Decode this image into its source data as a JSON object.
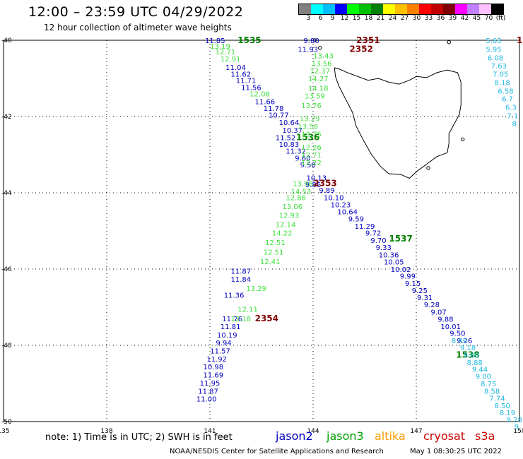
{
  "header": {
    "title": "12:00 – 23:59 UTC 04/29/2022",
    "subtitle": "12 hour collection of altimeter wave heights"
  },
  "legend": {
    "colors": [
      "#808080",
      "#00ffff",
      "#00bfff",
      "#0000ff",
      "#00ff00",
      "#00c000",
      "#008000",
      "#ffff00",
      "#ffc000",
      "#ff8000",
      "#ff0000",
      "#c00000",
      "#800000",
      "#ff00ff",
      "#c080ff",
      "#ffc0ff",
      "#000000"
    ],
    "labels": [
      "3",
      "6",
      "9",
      "12",
      "15",
      "18",
      "21",
      "24",
      "27",
      "30",
      "33",
      "36",
      "39",
      "42",
      "45",
      "70",
      "(ft)"
    ]
  },
  "axes": {
    "lon_ticks": [
      "135",
      "138",
      "141",
      "144",
      "147",
      "150"
    ],
    "lat_ticks": [
      "-40",
      "-42",
      "-44",
      "-46",
      "-48",
      "-50"
    ]
  },
  "map_data": {
    "lon_range": [
      135,
      150
    ],
    "lat_range": [
      -50,
      -40
    ],
    "tracks": [
      {
        "mission": "jason2",
        "color": "#0000c0",
        "pass_labels": [
          {
            "text": "1535",
            "lon": 142.15,
            "lat": -40.0,
            "color": "#008000"
          },
          {
            "text": "1536",
            "lon": 143.85,
            "lat": -42.55,
            "color": "#008000"
          },
          {
            "text": "1537",
            "lon": 146.55,
            "lat": -45.2,
            "color": "#008000"
          },
          {
            "text": "1538",
            "lon": 148.5,
            "lat": -48.25,
            "color": "#008000"
          }
        ],
        "points": [
          {
            "lon": 141.15,
            "lat": -40.0,
            "v": "11.85"
          },
          {
            "lon": 141.75,
            "lat": -40.7,
            "v": "11.04"
          },
          {
            "lon": 141.9,
            "lat": -40.88,
            "v": "11.62"
          },
          {
            "lon": 142.05,
            "lat": -41.05,
            "v": "11.71"
          },
          {
            "lon": 142.2,
            "lat": -41.23,
            "v": "11.56"
          },
          {
            "lon": 142.6,
            "lat": -41.6,
            "v": "11.66"
          },
          {
            "lon": 142.85,
            "lat": -41.78,
            "v": "11.78"
          },
          {
            "lon": 143.0,
            "lat": -41.95,
            "v": "10.77"
          },
          {
            "lon": 143.3,
            "lat": -42.15,
            "v": "10.64"
          },
          {
            "lon": 143.4,
            "lat": -42.35,
            "v": "10.37"
          },
          {
            "lon": 143.2,
            "lat": -42.55,
            "v": "11.52"
          },
          {
            "lon": 143.3,
            "lat": -42.72,
            "v": "10.83"
          },
          {
            "lon": 143.5,
            "lat": -42.9,
            "v": "11.32"
          },
          {
            "lon": 143.7,
            "lat": -43.08,
            "v": "9.60"
          },
          {
            "lon": 143.85,
            "lat": -43.26,
            "v": "9.50"
          },
          {
            "lon": 144.1,
            "lat": -43.6,
            "v": "10.13"
          },
          {
            "lon": 144.0,
            "lat": -43.78,
            "v": "9.86"
          },
          {
            "lon": 144.4,
            "lat": -43.93,
            "v": "9.89"
          },
          {
            "lon": 144.6,
            "lat": -44.12,
            "v": "10.10"
          },
          {
            "lon": 144.8,
            "lat": -44.31,
            "v": "10.23"
          },
          {
            "lon": 145.0,
            "lat": -44.49,
            "v": "10.64"
          },
          {
            "lon": 145.25,
            "lat": -44.68,
            "v": "9.59"
          },
          {
            "lon": 145.5,
            "lat": -44.87,
            "v": "11.29"
          },
          {
            "lon": 145.75,
            "lat": -45.05,
            "v": "9.72"
          },
          {
            "lon": 145.9,
            "lat": -45.24,
            "v": "9.70"
          },
          {
            "lon": 146.05,
            "lat": -45.43,
            "v": "9.33"
          },
          {
            "lon": 146.2,
            "lat": -45.62,
            "v": "10.36"
          },
          {
            "lon": 146.35,
            "lat": -45.81,
            "v": "10.05"
          },
          {
            "lon": 146.55,
            "lat": -46.0,
            "v": "10.02"
          },
          {
            "lon": 146.75,
            "lat": -46.18,
            "v": "9.99"
          },
          {
            "lon": 146.9,
            "lat": -46.37,
            "v": "9.15"
          },
          {
            "lon": 147.1,
            "lat": -46.56,
            "v": "9.25"
          },
          {
            "lon": 147.25,
            "lat": -46.74,
            "v": "9.31"
          },
          {
            "lon": 147.45,
            "lat": -46.93,
            "v": "9.28"
          },
          {
            "lon": 147.65,
            "lat": -47.12,
            "v": "9.07"
          },
          {
            "lon": 147.85,
            "lat": -47.31,
            "v": "9.88"
          },
          {
            "lon": 148.0,
            "lat": -47.5,
            "v": "10.01"
          },
          {
            "lon": 148.2,
            "lat": -47.68,
            "v": "9.50"
          },
          {
            "lon": 148.4,
            "lat": -47.87,
            "v": "9.26"
          },
          {
            "lon": 143.95,
            "lat": -40.0,
            "v": "9.80"
          },
          {
            "lon": 143.85,
            "lat": -40.23,
            "v": "11.93"
          },
          {
            "lon": 141.9,
            "lat": -46.05,
            "v": "11.87"
          },
          {
            "lon": 141.9,
            "lat": -46.26,
            "v": "11.84"
          },
          {
            "lon": 141.7,
            "lat": -46.68,
            "v": "11.36"
          },
          {
            "lon": 141.65,
            "lat": -47.3,
            "v": "11.76"
          },
          {
            "lon": 141.6,
            "lat": -47.5,
            "v": "11.81"
          },
          {
            "lon": 141.5,
            "lat": -47.72,
            "v": "10.19"
          },
          {
            "lon": 141.4,
            "lat": -47.93,
            "v": "9.94"
          },
          {
            "lon": 141.3,
            "lat": -48.14,
            "v": "11.57"
          },
          {
            "lon": 141.2,
            "lat": -48.35,
            "v": "11.92"
          },
          {
            "lon": 141.1,
            "lat": -48.56,
            "v": "10.98"
          },
          {
            "lon": 141.1,
            "lat": -48.77,
            "v": "11.69"
          },
          {
            "lon": 141.0,
            "lat": -48.98,
            "v": "11.95"
          },
          {
            "lon": 140.95,
            "lat": -49.19,
            "v": "11.87"
          },
          {
            "lon": 140.9,
            "lat": -49.4,
            "v": "11.00"
          }
        ]
      },
      {
        "mission": "jason3",
        "color": "#40e040",
        "points": [
          {
            "lon": 141.3,
            "lat": -40.15,
            "v": "13.19"
          },
          {
            "lon": 141.45,
            "lat": -40.3,
            "v": "12.71"
          },
          {
            "lon": 141.6,
            "lat": -40.48,
            "v": "12.91"
          },
          {
            "lon": 142.45,
            "lat": -41.4,
            "v": "12.08"
          },
          {
            "lon": 144.3,
            "lat": -40.4,
            "v": "13.43"
          },
          {
            "lon": 144.25,
            "lat": -40.6,
            "v": "13.56"
          },
          {
            "lon": 144.2,
            "lat": -40.8,
            "v": "12.37"
          },
          {
            "lon": 144.15,
            "lat": -41.0,
            "v": "14.27"
          },
          {
            "lon": 144.15,
            "lat": -41.25,
            "v": "14.18"
          },
          {
            "lon": 144.05,
            "lat": -41.45,
            "v": "13.59"
          },
          {
            "lon": 143.95,
            "lat": -41.7,
            "v": "13.76"
          },
          {
            "lon": 143.9,
            "lat": -42.05,
            "v": "13.29"
          },
          {
            "lon": 143.85,
            "lat": -42.25,
            "v": "13.58"
          },
          {
            "lon": 143.95,
            "lat": -42.45,
            "v": "13.75"
          },
          {
            "lon": 143.95,
            "lat": -42.8,
            "v": "12.26"
          },
          {
            "lon": 143.95,
            "lat": -43.0,
            "v": "12.71"
          },
          {
            "lon": 143.95,
            "lat": -43.2,
            "v": "12.22"
          },
          {
            "lon": 143.7,
            "lat": -43.75,
            "v": "13.98"
          },
          {
            "lon": 143.65,
            "lat": -43.95,
            "v": "14.53"
          },
          {
            "lon": 143.5,
            "lat": -44.12,
            "v": "12.86"
          },
          {
            "lon": 143.4,
            "lat": -44.35,
            "v": "13.06"
          },
          {
            "lon": 143.3,
            "lat": -44.58,
            "v": "12.93"
          },
          {
            "lon": 143.2,
            "lat": -44.82,
            "v": "12.14"
          },
          {
            "lon": 143.1,
            "lat": -45.05,
            "v": "14.22"
          },
          {
            "lon": 142.9,
            "lat": -45.3,
            "v": "12.51"
          },
          {
            "lon": 142.85,
            "lat": -45.55,
            "v": "12.51"
          },
          {
            "lon": 142.75,
            "lat": -45.8,
            "v": "12.41"
          },
          {
            "lon": 142.35,
            "lat": -46.5,
            "v": "13.29"
          },
          {
            "lon": 142.1,
            "lat": -47.05,
            "v": "12.11"
          },
          {
            "lon": 141.9,
            "lat": -47.3,
            "v": "12.18"
          }
        ]
      },
      {
        "mission": "cryosat",
        "color": "#800000",
        "pass_labels": [
          {
            "text": "2351",
            "lon": 145.6,
            "lat": -40.0,
            "color": "#800000"
          },
          {
            "text": "2352",
            "lon": 145.4,
            "lat": -40.23,
            "color": "#800000"
          },
          {
            "text": "2353",
            "lon": 144.35,
            "lat": -43.75,
            "color": "#800000"
          },
          {
            "text": "2354",
            "lon": 142.65,
            "lat": -47.3,
            "color": "#800000"
          }
        ]
      },
      {
        "mission": "s3a-right",
        "color": "#20b8e0",
        "points": [
          {
            "lon": 149.25,
            "lat": -40.0,
            "v": "5.63"
          },
          {
            "lon": 149.25,
            "lat": -40.23,
            "v": "5.95"
          },
          {
            "lon": 149.3,
            "lat": -40.45,
            "v": "6.08"
          },
          {
            "lon": 149.4,
            "lat": -40.67,
            "v": "7.63"
          },
          {
            "lon": 149.45,
            "lat": -40.88,
            "v": "7.05"
          },
          {
            "lon": 149.5,
            "lat": -41.1,
            "v": "8.18"
          },
          {
            "lon": 149.6,
            "lat": -41.32,
            "v": "6.58"
          },
          {
            "lon": 149.65,
            "lat": -41.53,
            "v": "6.7"
          },
          {
            "lon": 149.75,
            "lat": -41.75,
            "v": "6.3"
          },
          {
            "lon": 149.8,
            "lat": -41.97,
            "v": "7.1"
          },
          {
            "lon": 149.85,
            "lat": -42.18,
            "v": "8"
          },
          {
            "lon": 148.25,
            "lat": -47.87,
            "v": "8.49"
          },
          {
            "lon": 148.5,
            "lat": -48.06,
            "v": "9.18"
          },
          {
            "lon": 148.6,
            "lat": -48.25,
            "v": "8.80"
          },
          {
            "lon": 148.7,
            "lat": -48.44,
            "v": "8.88"
          },
          {
            "lon": 148.85,
            "lat": -48.62,
            "v": "9.44"
          },
          {
            "lon": 148.95,
            "lat": -48.81,
            "v": "9.00"
          },
          {
            "lon": 149.1,
            "lat": -49.0,
            "v": "8.75"
          },
          {
            "lon": 149.2,
            "lat": -49.19,
            "v": "8.58"
          },
          {
            "lon": 149.35,
            "lat": -49.38,
            "v": "7.74"
          },
          {
            "lon": 149.5,
            "lat": -49.57,
            "v": "8.50"
          },
          {
            "lon": 149.65,
            "lat": -49.76,
            "v": "8.19"
          },
          {
            "lon": 149.85,
            "lat": -49.94,
            "v": "9.28"
          },
          {
            "lon": 149.95,
            "lat": -50.12,
            "v": "9."
          }
        ]
      }
    ]
  },
  "edge_label": "1",
  "note": "note:  1) Time is in UTC;  2) SWH is in feet",
  "missions": [
    {
      "label": "jason2",
      "color": "#0000c0",
      "x": 390
    },
    {
      "label": "jason3",
      "color": "#00a000",
      "x": 462
    },
    {
      "label": "altika",
      "color": "#ff9900",
      "x": 530
    },
    {
      "label": "cryosat",
      "color": "#cc0000",
      "x": 599
    },
    {
      "label": "s3a",
      "color": "#cc0000",
      "x": 672
    }
  ],
  "footer": {
    "credit": "NOAA/NESDIS Center for Satellite Applications and Research",
    "timestamp": "May  1 08:30:25 UTC 2022"
  }
}
